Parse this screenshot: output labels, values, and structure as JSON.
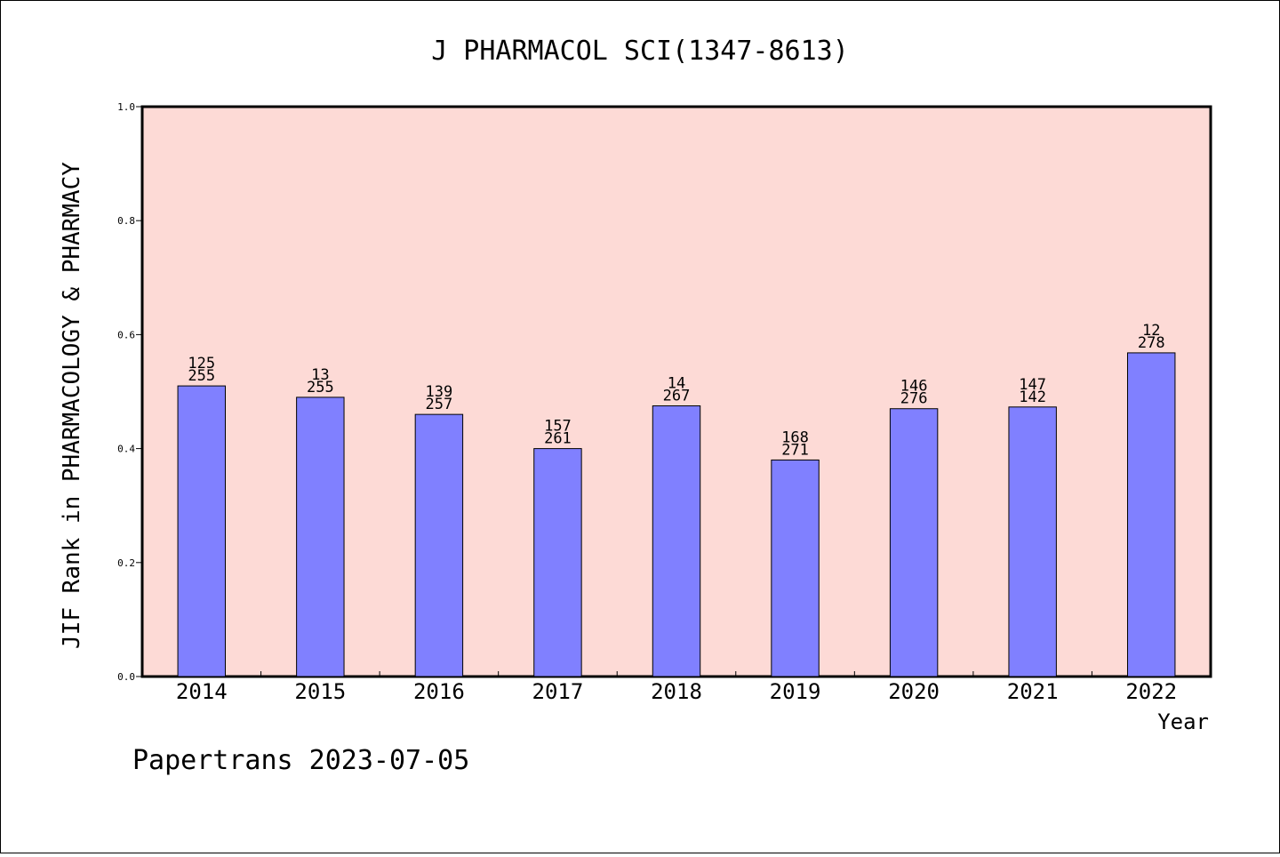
{
  "chart_data": {
    "type": "bar",
    "title": "J PHARMACOL SCI(1347-8613)",
    "xlabel": "Year",
    "ylabel": "JIF Rank in PHARMACOLOGY & PHARMACY",
    "ylim": [
      0,
      1.0
    ],
    "yticks": [
      "0.0",
      "0.2",
      "0.4",
      "0.6",
      "0.8",
      "1.0"
    ],
    "categories": [
      "2014",
      "2015",
      "2016",
      "2017",
      "2018",
      "2019",
      "2020",
      "2021",
      "2022"
    ],
    "values": [
      0.51,
      0.49,
      0.46,
      0.4,
      0.475,
      0.38,
      0.47,
      0.473,
      0.568
    ],
    "bar_labels": [
      [
        "125",
        "255"
      ],
      [
        "13",
        "255"
      ],
      [
        "139",
        "257"
      ],
      [
        "157",
        "261"
      ],
      [
        "14",
        "267"
      ],
      [
        "168",
        "271"
      ],
      [
        "146",
        "276"
      ],
      [
        "147",
        "142"
      ],
      [
        "12",
        "278"
      ]
    ],
    "grid": false,
    "colors": {
      "bar": "#8080ff",
      "plot_background": "#fddad6",
      "axes": "#000000"
    }
  },
  "footer": "Papertrans 2023-07-05"
}
